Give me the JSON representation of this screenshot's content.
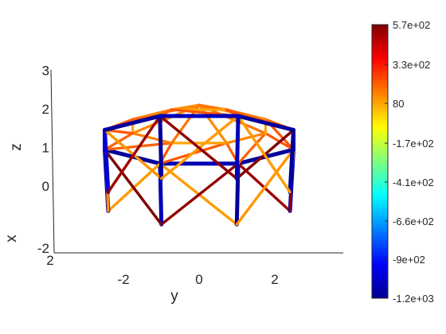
{
  "chart_data": {
    "type": "3d-truss",
    "view": "3d",
    "axes": {
      "x": {
        "label": "x",
        "ticks": [
          "-2",
          "2"
        ]
      },
      "y": {
        "label": "y",
        "ticks": [
          "-2",
          "0",
          "2"
        ],
        "values": [
          -2,
          0,
          2
        ],
        "range": [
          -3.9,
          3.8
        ]
      },
      "z": {
        "label": "z",
        "ticks": [
          "3",
          "2",
          "1",
          "0",
          "-2"
        ],
        "values": [
          3,
          2,
          1,
          0,
          -2
        ],
        "range": [
          -2,
          3
        ]
      }
    },
    "colorbar": {
      "range": [
        -1200,
        570
      ],
      "colormap": "jet",
      "tick_labels": [
        "5.7e+02",
        "3.3e+02",
        "80",
        "-1.7e+02",
        "-4.1e+02",
        "-6.6e+02",
        "-9e+02",
        "-1.2e+03"
      ],
      "tick_values": [
        570,
        330,
        80,
        -170,
        -410,
        -660,
        -900,
        -1200
      ]
    },
    "structure": {
      "base_ring": {
        "n": 8,
        "radius": 2.6,
        "z": -0.4
      },
      "top_ring": {
        "n": 8,
        "radius": 2.7,
        "z": 1.2
      },
      "apex": {
        "z": 2.1
      }
    },
    "member_forces": {
      "top_ring": [
        -1150,
        -1100,
        -1150,
        -1100,
        -1150,
        -1100,
        -1150,
        -1100
      ],
      "verticals": [
        -1100,
        -1150,
        -1050,
        -1150,
        -1100,
        -1150,
        -1050,
        -1150
      ],
      "diagonals_a": [
        570,
        80,
        520,
        80,
        570,
        100,
        520,
        80
      ],
      "diagonals_b": [
        80,
        560,
        90,
        540,
        80,
        560,
        90,
        540
      ],
      "roof_ring": [
        120,
        60,
        120,
        60,
        120,
        60,
        120,
        60
      ],
      "roof_spokes": [
        150,
        110,
        150,
        110,
        150,
        110,
        150,
        110
      ],
      "roof_struts": [
        200,
        180,
        200,
        180,
        200,
        180,
        200,
        180
      ]
    }
  }
}
